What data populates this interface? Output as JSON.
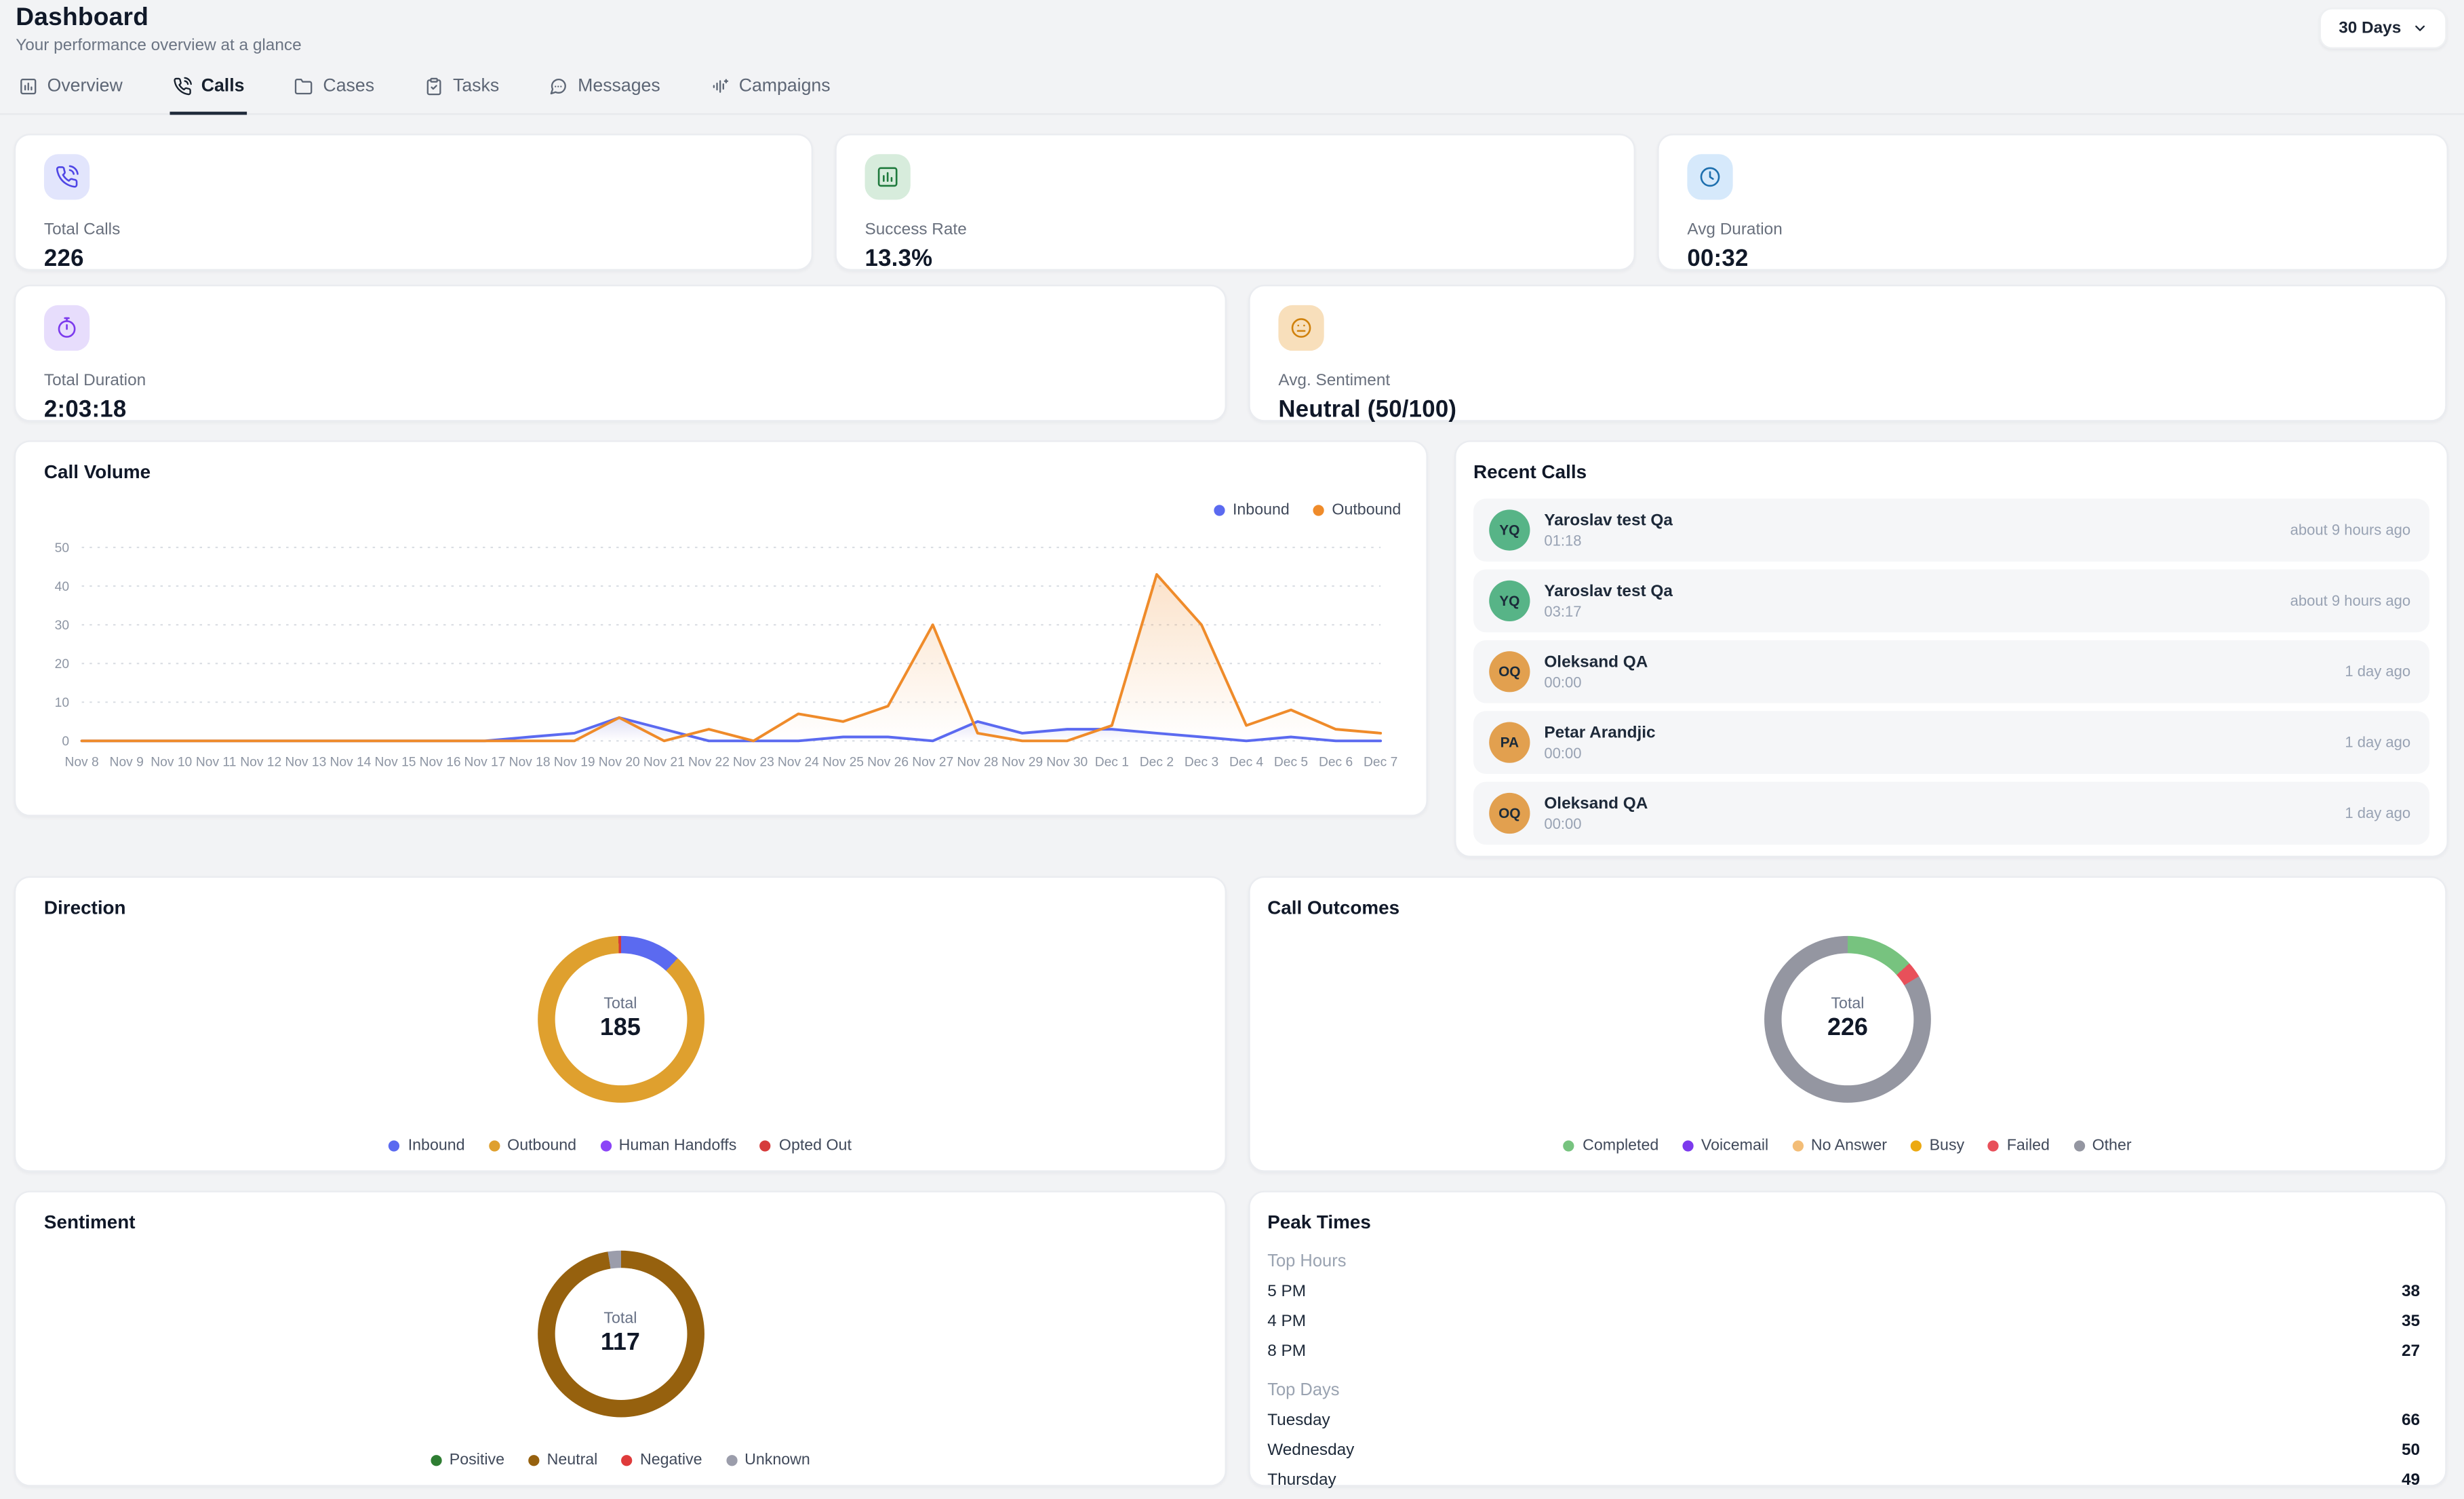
{
  "header": {
    "title": "Dashboard",
    "subtitle": "Your performance overview at a glance",
    "range_label": "30 Days"
  },
  "tabs": [
    {
      "label": "Overview",
      "icon": "bar-chart-square",
      "active": false
    },
    {
      "label": "Calls",
      "icon": "phone-call",
      "active": true
    },
    {
      "label": "Cases",
      "icon": "folder",
      "active": false
    },
    {
      "label": "Tasks",
      "icon": "clipboard-check",
      "active": false
    },
    {
      "label": "Messages",
      "icon": "message-dots",
      "active": false
    },
    {
      "label": "Campaigns",
      "icon": "audio-lines",
      "active": false
    }
  ],
  "stats": [
    {
      "label": "Total Calls",
      "value": "226",
      "icon": "phone-call",
      "icon_color": "#4f46e5",
      "icon_bg": "#e2e5fc"
    },
    {
      "label": "Success Rate",
      "value": "13.3%",
      "icon": "bar-chart-square",
      "icon_color": "#1f7a3d",
      "icon_bg": "#d7ecdc"
    },
    {
      "label": "Avg Duration",
      "value": "00:32",
      "icon": "clock",
      "icon_color": "#1d6fae",
      "icon_bg": "#d6e9fb"
    },
    {
      "label": "Total Duration",
      "value": "2:03:18",
      "icon": "timer",
      "icon_color": "#7c3aed",
      "icon_bg": "#e7ddfc"
    },
    {
      "label": "Avg. Sentiment",
      "value": "Neutral (50/100)",
      "icon": "meh-face",
      "icon_color": "#d0810c",
      "icon_bg": "#f8dfbb"
    }
  ],
  "chart_data": [
    {
      "type": "line",
      "title": "Call Volume",
      "x": [
        "Nov 8",
        "Nov 9",
        "Nov 10",
        "Nov 11",
        "Nov 12",
        "Nov 13",
        "Nov 14",
        "Nov 15",
        "Nov 16",
        "Nov 17",
        "Nov 18",
        "Nov 19",
        "Nov 20",
        "Nov 21",
        "Nov 22",
        "Nov 23",
        "Nov 24",
        "Nov 25",
        "Nov 26",
        "Nov 27",
        "Nov 28",
        "Nov 29",
        "Nov 30",
        "Dec 1",
        "Dec 2",
        "Dec 3",
        "Dec 4",
        "Dec 5",
        "Dec 6",
        "Dec 7"
      ],
      "series": [
        {
          "name": "Inbound",
          "color": "#5b6af0",
          "values": [
            0,
            0,
            0,
            0,
            0,
            0,
            0,
            0,
            0,
            0,
            1,
            2,
            6,
            3,
            0,
            0,
            0,
            1,
            1,
            0,
            5,
            2,
            3,
            3,
            2,
            1,
            0,
            1,
            0,
            0
          ]
        },
        {
          "name": "Outbound",
          "color": "#ef8b2a",
          "values": [
            0,
            0,
            0,
            0,
            0,
            0,
            0,
            0,
            0,
            0,
            0,
            0,
            6,
            0,
            3,
            0,
            7,
            5,
            9,
            30,
            2,
            0,
            0,
            4,
            43,
            30,
            4,
            8,
            3,
            2
          ]
        }
      ],
      "ylim": [
        0,
        50
      ],
      "yticks": [
        0,
        10,
        20,
        30,
        40,
        50
      ],
      "grid": "horizontal-dashed",
      "legend_position": "top-right"
    },
    {
      "type": "donut",
      "title": "Direction",
      "center_label": "Total",
      "total": "185",
      "labels": [
        "Inbound",
        "Outbound",
        "Human Handoffs",
        "Opted Out"
      ],
      "values": [
        22,
        162,
        0,
        1
      ],
      "colors": [
        "#5b6af0",
        "#dfa02e",
        "#8b44f7",
        "#d63b3b"
      ],
      "legend_position": "bottom"
    },
    {
      "type": "donut",
      "title": "Call Outcomes",
      "center_label": "Total",
      "total": "226",
      "labels": [
        "Completed",
        "Voicemail",
        "No Answer",
        "Busy",
        "Failed",
        "Other"
      ],
      "values": [
        30,
        0,
        0,
        0,
        7,
        189
      ],
      "colors": [
        "#77c37f",
        "#7c3aed",
        "#f3bd77",
        "#eca912",
        "#e8505a",
        "#9496a1"
      ],
      "legend_position": "bottom"
    },
    {
      "type": "donut",
      "title": "Sentiment",
      "center_label": "Total",
      "total": "117",
      "labels": [
        "Positive",
        "Neutral",
        "Negative",
        "Unknown"
      ],
      "values": [
        0,
        114,
        0,
        3
      ],
      "colors": [
        "#2e7d32",
        "#96610e",
        "#df3b3b",
        "#9b9dab"
      ],
      "legend_position": "bottom"
    }
  ],
  "recent_calls": {
    "title": "Recent Calls",
    "items": [
      {
        "initials": "YQ",
        "name": "Yaroslav test Qa",
        "duration": "01:18",
        "time": "about 9 hours ago",
        "avatar_color": "#57b487"
      },
      {
        "initials": "YQ",
        "name": "Yaroslav test Qa",
        "duration": "03:17",
        "time": "about 9 hours ago",
        "avatar_color": "#57b487"
      },
      {
        "initials": "OQ",
        "name": "Oleksand QA",
        "duration": "00:00",
        "time": "1 day ago",
        "avatar_color": "#e2a04f"
      },
      {
        "initials": "PA",
        "name": "Petar Arandjic",
        "duration": "00:00",
        "time": "1 day ago",
        "avatar_color": "#e2a04f"
      },
      {
        "initials": "OQ",
        "name": "Oleksand QA",
        "duration": "00:00",
        "time": "1 day ago",
        "avatar_color": "#e2a04f"
      }
    ]
  },
  "peak_times": {
    "title": "Peak Times",
    "sections": [
      {
        "heading": "Top Hours",
        "rows": [
          [
            "5 PM",
            "38"
          ],
          [
            "4 PM",
            "35"
          ],
          [
            "8 PM",
            "27"
          ]
        ]
      },
      {
        "heading": "Top Days",
        "rows": [
          [
            "Tuesday",
            "66"
          ],
          [
            "Wednesday",
            "50"
          ],
          [
            "Thursday",
            "49"
          ]
        ]
      }
    ]
  }
}
